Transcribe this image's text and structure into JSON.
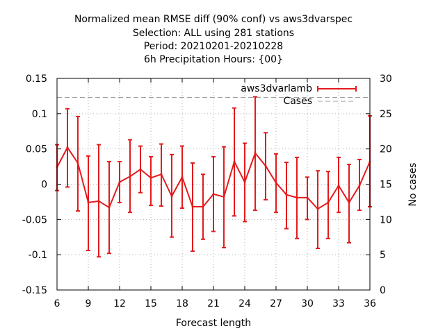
{
  "chart_data": {
    "type": "line",
    "title_lines": [
      "Normalized mean RMSE diff (90% conf) vs aws3dvarspec",
      "Selection: ALL using   281 stations",
      "Period: 20210201-20210228",
      "6h Precipitation   Hours: {00}"
    ],
    "xlabel": "Forecast length",
    "ylabel": "",
    "y2label": "No cases",
    "xlim": [
      6,
      36
    ],
    "ylim": [
      -0.15,
      0.15
    ],
    "y2lim": [
      0,
      30
    ],
    "x_ticks": [
      6,
      9,
      12,
      15,
      18,
      21,
      24,
      27,
      30,
      33,
      36
    ],
    "y_ticks": [
      -0.15,
      -0.1,
      -0.05,
      0,
      0.05,
      0.1,
      0.15
    ],
    "y_tick_labels": [
      "-0.15",
      "-0.1",
      "-0.05",
      "0",
      "0.05",
      "0.1",
      "0.15"
    ],
    "y2_ticks": [
      0,
      5,
      10,
      15,
      20,
      25,
      30
    ],
    "grid": true,
    "legend_position": "top-right",
    "series": [
      {
        "name": "aws3dvarlamb",
        "color": "#e41a1c",
        "style": "line-errorbars",
        "x": [
          6,
          7,
          8,
          9,
          10,
          11,
          12,
          13,
          14,
          15,
          16,
          17,
          18,
          19,
          20,
          21,
          22,
          23,
          24,
          25,
          26,
          27,
          28,
          29,
          30,
          31,
          32,
          33,
          34,
          35,
          36
        ],
        "values": [
          0.024,
          0.052,
          0.03,
          -0.026,
          -0.024,
          -0.033,
          0.003,
          0.011,
          0.021,
          0.009,
          0.014,
          -0.017,
          0.01,
          -0.032,
          -0.032,
          -0.014,
          -0.018,
          0.032,
          0.003,
          0.044,
          0.026,
          0.002,
          -0.015,
          -0.019,
          -0.019,
          -0.035,
          -0.026,
          -0.002,
          -0.026,
          -0.002,
          0.032
        ],
        "lower": [
          -0.009,
          -0.004,
          -0.038,
          -0.094,
          -0.103,
          -0.098,
          -0.026,
          -0.04,
          -0.012,
          -0.03,
          -0.031,
          -0.075,
          -0.034,
          -0.095,
          -0.078,
          -0.067,
          -0.09,
          -0.045,
          -0.053,
          -0.037,
          -0.022,
          -0.04,
          -0.063,
          -0.077,
          -0.05,
          -0.091,
          -0.077,
          -0.04,
          -0.083,
          -0.037,
          -0.032
        ],
        "upper": [
          0.056,
          0.107,
          0.096,
          0.04,
          0.056,
          0.032,
          0.032,
          0.063,
          0.054,
          0.039,
          0.057,
          0.042,
          0.054,
          0.03,
          0.014,
          0.039,
          0.053,
          0.108,
          0.058,
          0.124,
          0.073,
          0.043,
          0.031,
          0.038,
          0.01,
          0.019,
          0.018,
          0.038,
          0.028,
          0.035,
          0.097
        ]
      },
      {
        "name": "Cases",
        "color": "#a0a0a0",
        "style": "dashed",
        "axis": "y2",
        "x": [
          6,
          36
        ],
        "values": [
          27.3,
          27.3
        ]
      }
    ]
  }
}
